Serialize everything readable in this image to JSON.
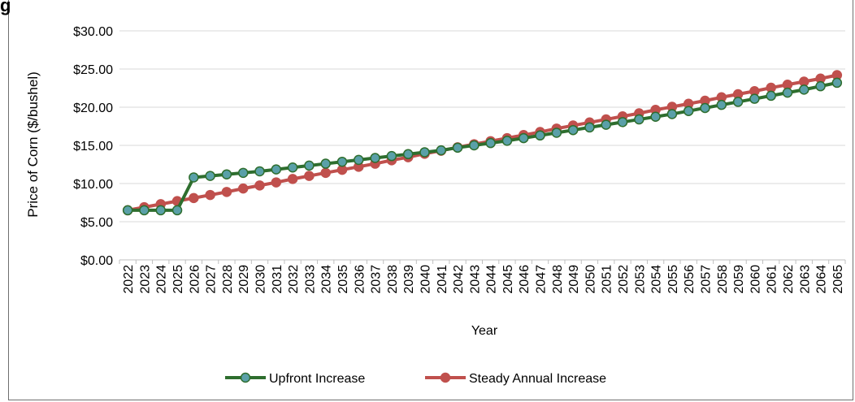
{
  "title_fragment": "g",
  "chart_data": {
    "type": "line",
    "ylabel": "Price of Corn ($/bushel)",
    "xlabel": "Year",
    "ylim": [
      0,
      30
    ],
    "y_ticks": [
      0,
      5,
      10,
      15,
      20,
      25,
      30
    ],
    "y_tick_labels": [
      "$0.00",
      "$5.00",
      "$10.00",
      "$15.00",
      "$20.00",
      "$25.00",
      "$30.00"
    ],
    "grid": true,
    "legend_position": "bottom",
    "categories": [
      "2022",
      "2023",
      "2024",
      "2025",
      "2026",
      "2027",
      "2028",
      "2029",
      "2030",
      "2031",
      "2032",
      "2033",
      "2034",
      "2035",
      "2036",
      "2037",
      "2038",
      "2039",
      "2040",
      "2041",
      "2042",
      "2043",
      "2044",
      "2045",
      "2046",
      "2047",
      "2048",
      "2049",
      "2050",
      "2051",
      "2052",
      "2053",
      "2054",
      "2055",
      "2056",
      "2057",
      "2058",
      "2059",
      "2060",
      "2061",
      "2062",
      "2063",
      "2064",
      "2065"
    ],
    "series": [
      {
        "name": "Upfront Increase",
        "line_color": "#2e6e2e",
        "marker_color": "#5aa0a8",
        "values": [
          6.5,
          6.5,
          6.5,
          6.5,
          10.8,
          11.0,
          11.2,
          11.4,
          11.6,
          11.85,
          12.1,
          12.35,
          12.6,
          12.85,
          13.1,
          13.35,
          13.6,
          13.85,
          14.1,
          14.35,
          14.7,
          15.0,
          15.3,
          15.6,
          15.95,
          16.3,
          16.65,
          17.0,
          17.35,
          17.7,
          18.05,
          18.4,
          18.75,
          19.1,
          19.5,
          19.9,
          20.3,
          20.7,
          21.1,
          21.5,
          21.9,
          22.3,
          22.75,
          23.2
        ]
      },
      {
        "name": "Steady Annual Increase",
        "line_color": "#c0504d",
        "marker_color": "#c0504d",
        "values": [
          6.5,
          6.9,
          7.3,
          7.7,
          8.1,
          8.5,
          8.9,
          9.35,
          9.75,
          10.15,
          10.6,
          11.0,
          11.4,
          11.8,
          12.2,
          12.6,
          13.05,
          13.45,
          13.9,
          14.3,
          14.75,
          15.15,
          15.55,
          15.95,
          16.35,
          16.75,
          17.2,
          17.6,
          18.0,
          18.4,
          18.8,
          19.2,
          19.65,
          20.05,
          20.45,
          20.85,
          21.3,
          21.7,
          22.1,
          22.55,
          22.95,
          23.35,
          23.75,
          24.2
        ]
      }
    ]
  }
}
